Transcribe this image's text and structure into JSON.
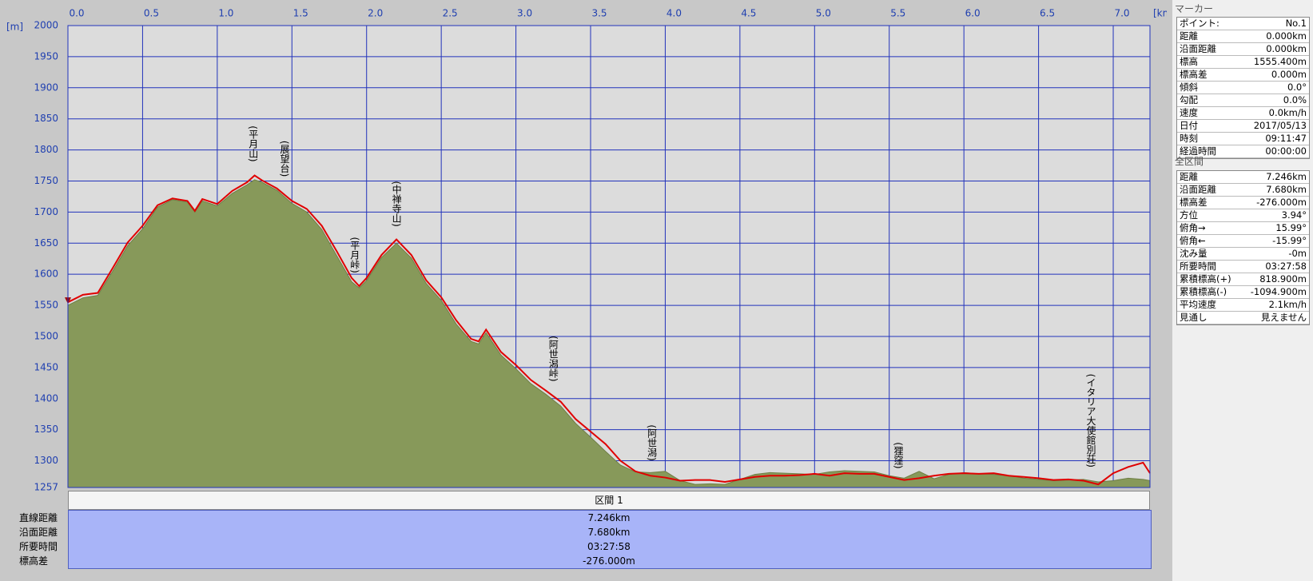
{
  "chart_data": {
    "type": "area",
    "y_unit": "[m]",
    "x_unit": "[km]",
    "xlim": [
      0,
      7.246
    ],
    "ylim": [
      1257,
      2000
    ],
    "xticks": [
      {
        "value": 0,
        "label": "0.0"
      },
      0.5,
      {
        "value": 1,
        "label": "1.0"
      },
      1.5,
      {
        "value": 2,
        "label": "2.0"
      },
      2.5,
      {
        "value": 3,
        "label": "3.0"
      },
      3.5,
      {
        "value": 4,
        "label": "4.0"
      },
      4.5,
      {
        "value": 5,
        "label": "5.0"
      },
      5.5,
      {
        "value": 6,
        "label": "6.0"
      },
      6.5,
      {
        "value": 7,
        "label": "7.0"
      }
    ],
    "yticks": [
      1257,
      1300,
      1350,
      1400,
      1450,
      1500,
      1550,
      1600,
      1650,
      1700,
      1750,
      1800,
      1850,
      1900,
      1950,
      2000
    ],
    "grid": true,
    "x": [
      0,
      0.1,
      0.2,
      0.3,
      0.4,
      0.5,
      0.6,
      0.7,
      0.8,
      0.85,
      0.9,
      1.0,
      1.1,
      1.2,
      1.25,
      1.3,
      1.4,
      1.5,
      1.6,
      1.7,
      1.8,
      1.9,
      1.95,
      2.0,
      2.1,
      2.2,
      2.3,
      2.4,
      2.5,
      2.6,
      2.7,
      2.75,
      2.8,
      2.9,
      3.0,
      3.1,
      3.2,
      3.3,
      3.4,
      3.5,
      3.6,
      3.7,
      3.8,
      3.9,
      4.0,
      4.1,
      4.2,
      4.3,
      4.4,
      4.5,
      4.6,
      4.7,
      4.8,
      4.9,
      5.0,
      5.1,
      5.2,
      5.3,
      5.4,
      5.5,
      5.6,
      5.7,
      5.8,
      5.9,
      6.0,
      6.1,
      6.2,
      6.3,
      6.4,
      6.5,
      6.6,
      6.7,
      6.8,
      6.9,
      7.0,
      7.1,
      7.2,
      7.246
    ],
    "series": [
      {
        "color": "#e00000",
        "values": [
          1555,
          1567,
          1570,
          1610,
          1651,
          1678,
          1711,
          1722,
          1718,
          1702,
          1721,
          1713,
          1734,
          1748,
          1759,
          1751,
          1738,
          1718,
          1705,
          1678,
          1637,
          1594,
          1581,
          1594,
          1631,
          1656,
          1631,
          1590,
          1563,
          1526,
          1496,
          1492,
          1511,
          1475,
          1454,
          1430,
          1413,
          1395,
          1367,
          1347,
          1327,
          1300,
          1283,
          1276,
          1273,
          1268,
          1269,
          1269,
          1266,
          1270,
          1274,
          1276,
          1276,
          1277,
          1279,
          1276,
          1280,
          1279,
          1279,
          1274,
          1269,
          1272,
          1276,
          1279,
          1280,
          1279,
          1280,
          1276,
          1274,
          1272,
          1269,
          1270,
          1268,
          1262,
          1280,
          1290,
          1297,
          1280
        ]
      },
      {
        "color": "#87995a",
        "values": [
          1550,
          1562,
          1566,
          1605,
          1646,
          1673,
          1708,
          1720,
          1716,
          1700,
          1718,
          1710,
          1730,
          1744,
          1752,
          1748,
          1735,
          1714,
          1700,
          1672,
          1630,
          1588,
          1578,
          1590,
          1627,
          1650,
          1626,
          1585,
          1558,
          1520,
          1492,
          1488,
          1506,
          1470,
          1448,
          1424,
          1407,
          1388,
          1360,
          1338,
          1315,
          1293,
          1282,
          1281,
          1283,
          1268,
          1262,
          1263,
          1262,
          1270,
          1278,
          1281,
          1280,
          1279,
          1278,
          1282,
          1284,
          1283,
          1282,
          1276,
          1272,
          1283,
          1271,
          1278,
          1281,
          1279,
          1278,
          1276,
          1272,
          1270,
          1268,
          1269,
          1270,
          1266,
          1268,
          1272,
          1270,
          1268
        ]
      }
    ],
    "annotations": [
      {
        "label": "(平月山)",
        "x": 1.24,
        "y": 1839
      },
      {
        "label": "(展望台)",
        "x": 1.45,
        "y": 1815
      },
      {
        "label": "(平月峠)",
        "x": 1.92,
        "y": 1660
      },
      {
        "label": "(中禅寺山)",
        "x": 2.2,
        "y": 1750
      },
      {
        "label": "(阿世潟峠)",
        "x": 3.25,
        "y": 1501
      },
      {
        "label": "(阿世潟)",
        "x": 3.91,
        "y": 1358
      },
      {
        "label": "(狸窪)",
        "x": 5.56,
        "y": 1330
      },
      {
        "label": "(イタリア大使館別荘)",
        "x": 6.85,
        "y": 1440
      }
    ]
  },
  "section_table": {
    "title": "区間 1",
    "rows": [
      [
        "直線距離",
        "7.246km"
      ],
      [
        "沿面距離",
        "7.680km"
      ],
      [
        "所要時間",
        "03:27:58"
      ],
      [
        "標高差",
        "-276.000m"
      ]
    ]
  },
  "marker_panel": {
    "title": "マーカー",
    "rows": [
      [
        "ポイント:",
        "No.1"
      ],
      [
        "距離",
        "0.000km"
      ],
      [
        "沿面距離",
        "0.000km"
      ],
      [
        "標高",
        "1555.400m"
      ],
      [
        "標高差",
        "0.000m"
      ],
      [
        "傾斜",
        "0.0°"
      ],
      [
        "勾配",
        "0.0%"
      ],
      [
        "速度",
        "0.0km/h"
      ],
      [
        "日付",
        "2017/05/13"
      ],
      [
        "時刻",
        "09:11:47"
      ],
      [
        "経過時間",
        "00:00:00"
      ]
    ]
  },
  "total_panel": {
    "title": "全区間",
    "rows": [
      [
        "距離",
        "7.246km"
      ],
      [
        "沿面距離",
        "7.680km"
      ],
      [
        "標高差",
        "-276.000m"
      ],
      [
        "方位",
        "3.94°"
      ],
      [
        "俯角→",
        "15.99°"
      ],
      [
        "俯角←",
        "-15.99°"
      ],
      [
        "沈み量",
        "-0m"
      ],
      [
        "所要時間",
        "03:27:58"
      ],
      [
        "累積標高(+)",
        "818.900m"
      ],
      [
        "累積標高(-)",
        "-1094.900m"
      ],
      [
        "平均速度",
        "2.1km/h"
      ],
      [
        "見通し",
        "見えません"
      ]
    ]
  }
}
